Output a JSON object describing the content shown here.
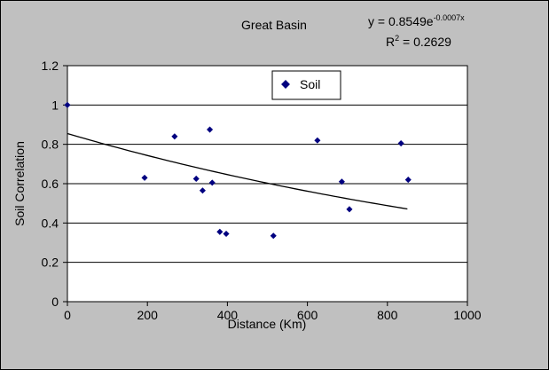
{
  "chart_data": {
    "type": "scatter",
    "title": "Great Basin",
    "equation": {
      "prefix": "y = 0.8549e",
      "exponent": "-0.0007x",
      "r2_label": "R",
      "r2_sup": "2",
      "r2_value": " = 0.2629"
    },
    "xlabel": "Distance (Km)",
    "ylabel": "Soil Correlation",
    "xlim": [
      0,
      1000
    ],
    "ylim": [
      0,
      1.2
    ],
    "x_ticks": [
      0,
      200,
      400,
      600,
      800,
      1000
    ],
    "y_ticks": [
      0,
      0.2,
      0.4,
      0.6,
      0.8,
      1,
      1.2
    ],
    "y_tick_labels": [
      "0",
      "0.2",
      "0.4",
      "0.6",
      "0.8",
      "1",
      "1.2"
    ],
    "grid": "horizontal",
    "legend_position": "top-center",
    "series": [
      {
        "name": "Soil",
        "color": "#000080",
        "points": [
          [
            0,
            1.0
          ],
          [
            193,
            0.63
          ],
          [
            268,
            0.84
          ],
          [
            322,
            0.625
          ],
          [
            338,
            0.565
          ],
          [
            356,
            0.875
          ],
          [
            362,
            0.605
          ],
          [
            381,
            0.355
          ],
          [
            397,
            0.345
          ],
          [
            515,
            0.335
          ],
          [
            625,
            0.82
          ],
          [
            686,
            0.61
          ],
          [
            705,
            0.47
          ],
          [
            834,
            0.805
          ],
          [
            852,
            0.62
          ]
        ]
      }
    ],
    "trendline": {
      "type": "exponential",
      "a": 0.8549,
      "b": -0.0007,
      "x_range": [
        0,
        850
      ]
    }
  }
}
